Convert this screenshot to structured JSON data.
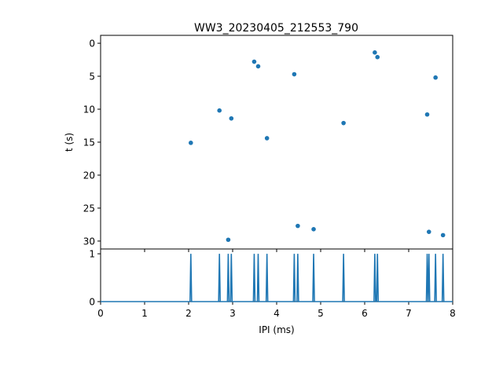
{
  "chart_data": [
    {
      "type": "scatter",
      "title": "WW3_20230405_212553_790",
      "xlabel": "",
      "ylabel": "t (s)",
      "xlim": [
        0,
        8
      ],
      "ylim": [
        31.2,
        -1.2
      ],
      "y_inverted": true,
      "yticks": [
        "0",
        "5",
        "10",
        "15",
        "20",
        "25",
        "30"
      ],
      "x_ticks_labeled": false,
      "grid": false,
      "color": "#1f77b4",
      "points": [
        {
          "x": 2.05,
          "y": 15.1
        },
        {
          "x": 2.7,
          "y": 10.2
        },
        {
          "x": 2.9,
          "y": 29.8
        },
        {
          "x": 2.97,
          "y": 11.4
        },
        {
          "x": 3.49,
          "y": 2.8
        },
        {
          "x": 3.58,
          "y": 3.5
        },
        {
          "x": 3.78,
          "y": 14.4
        },
        {
          "x": 4.4,
          "y": 4.7
        },
        {
          "x": 4.48,
          "y": 27.7
        },
        {
          "x": 4.84,
          "y": 28.2
        },
        {
          "x": 5.52,
          "y": 12.1
        },
        {
          "x": 6.23,
          "y": 1.4
        },
        {
          "x": 6.29,
          "y": 2.1
        },
        {
          "x": 7.42,
          "y": 10.8
        },
        {
          "x": 7.46,
          "y": 28.6
        },
        {
          "x": 7.61,
          "y": 5.2
        },
        {
          "x": 7.78,
          "y": 29.1
        }
      ]
    },
    {
      "type": "line",
      "title": "",
      "xlabel": "IPI (ms)",
      "ylabel": "",
      "xlim": [
        0,
        8
      ],
      "ylim": [
        0,
        1.1
      ],
      "xticks": [
        "0",
        "1",
        "2",
        "3",
        "4",
        "5",
        "6",
        "7",
        "8"
      ],
      "yticks": [
        "0",
        "1"
      ],
      "grid": false,
      "color": "#1f77b4",
      "spikes_x": [
        2.05,
        2.7,
        2.9,
        2.97,
        3.49,
        3.58,
        3.78,
        4.4,
        4.48,
        4.84,
        5.52,
        6.23,
        6.29,
        7.42,
        7.46,
        7.61,
        7.78
      ],
      "spike_height": 1
    }
  ]
}
